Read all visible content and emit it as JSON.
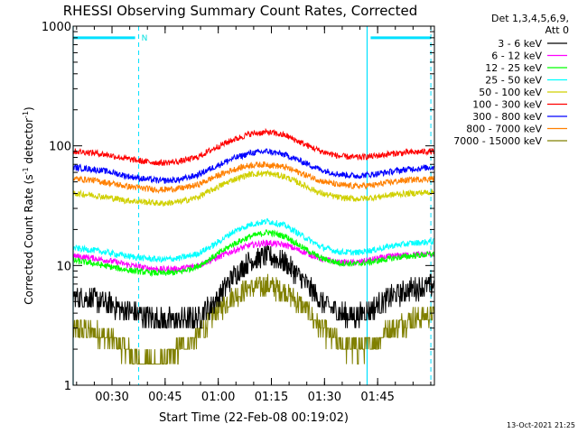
{
  "chart_data": {
    "type": "line",
    "title": "RHESSI Observing Summary Count Rates, Corrected",
    "xlabel": "Start Time (22-Feb-08 00:19:02)",
    "ylabel_main": "Corrected Count Rate (s",
    "ylabel_sup1": "-1",
    "ylabel_mid": " detector",
    "ylabel_sup2": "-1",
    "ylabel_end": ")",
    "x_unit": "minutes after 00:19:02",
    "xlim": [
      0,
      102
    ],
    "ylim": [
      1,
      1000
    ],
    "yscale": "log",
    "grid": false,
    "x_ticks": [
      {
        "value": 10.97,
        "label": "00:30"
      },
      {
        "value": 25.97,
        "label": "00:45"
      },
      {
        "value": 40.97,
        "label": "01:00"
      },
      {
        "value": 55.97,
        "label": "01:15"
      },
      {
        "value": 70.97,
        "label": "01:30"
      },
      {
        "value": 85.97,
        "label": "01:45"
      }
    ],
    "y_ticks": [
      {
        "value": 1,
        "label": "1"
      },
      {
        "value": 10,
        "label": "10"
      },
      {
        "value": 100,
        "label": "100"
      },
      {
        "value": 1000,
        "label": "1000"
      }
    ],
    "legend_header_1": "Det 1,3,4,5,6,9,",
    "legend_header_2": "Att 0",
    "legend_position": "right",
    "night_marker_label": "N",
    "markers": {
      "solid_vlines": [
        0,
        83
      ],
      "dashed_vlines": [
        18.5,
        101
      ],
      "bars": [
        [
          0,
          17.5
        ],
        [
          84,
          101
        ]
      ],
      "bar_level": 800
    },
    "timestamp": "13-Oct-2021 21:25",
    "series": [
      {
        "name": "3 - 6 keV",
        "color": "#000000",
        "x": [
          0,
          5,
          10,
          15,
          20,
          25,
          30,
          35,
          40,
          45,
          50,
          55,
          60,
          65,
          70,
          75,
          80,
          85,
          90,
          95,
          101
        ],
        "values": [
          5.5,
          5.3,
          4.8,
          4.2,
          3.8,
          3.5,
          3.5,
          3.6,
          5,
          8,
          11,
          12,
          10.5,
          7.5,
          5,
          4,
          3.8,
          4.5,
          5.5,
          6.3,
          6.8
        ]
      },
      {
        "name": "6 - 12 keV",
        "color": "#ff00ff",
        "x": [
          0,
          5,
          10,
          15,
          20,
          25,
          30,
          35,
          40,
          45,
          50,
          55,
          60,
          65,
          70,
          75,
          80,
          85,
          90,
          95,
          101
        ],
        "values": [
          12,
          11.6,
          11,
          10.2,
          9.6,
          9.3,
          9.4,
          10,
          11.4,
          13.2,
          14.8,
          15.5,
          14.8,
          13,
          11.4,
          10.6,
          10.6,
          11.3,
          12,
          12.3,
          12.5
        ]
      },
      {
        "name": "12 - 25 keV",
        "color": "#00ff00",
        "x": [
          0,
          5,
          10,
          15,
          20,
          25,
          30,
          35,
          40,
          45,
          50,
          55,
          60,
          65,
          70,
          75,
          80,
          85,
          90,
          95,
          101
        ],
        "values": [
          11,
          10.5,
          9.8,
          9.2,
          8.8,
          8.6,
          8.8,
          9.8,
          12,
          15,
          17.5,
          19,
          17.5,
          14,
          11.5,
          10.5,
          10.3,
          10.8,
          11.5,
          12,
          12.4
        ]
      },
      {
        "name": "25 - 50 keV",
        "color": "#00ffff",
        "x": [
          0,
          5,
          10,
          15,
          20,
          25,
          30,
          35,
          40,
          45,
          50,
          55,
          60,
          65,
          70,
          75,
          80,
          85,
          90,
          95,
          101
        ],
        "values": [
          14,
          13.5,
          12.8,
          12,
          11.5,
          11.2,
          11.5,
          12.5,
          15,
          19,
          22,
          23.5,
          21.5,
          17.5,
          14.3,
          13,
          12.8,
          13.5,
          14.6,
          15.3,
          15.8
        ]
      },
      {
        "name": "50 - 100 keV",
        "color": "#d0d000",
        "x": [
          0,
          5,
          10,
          15,
          20,
          25,
          30,
          35,
          40,
          45,
          50,
          55,
          60,
          65,
          70,
          75,
          80,
          85,
          90,
          95,
          101
        ],
        "values": [
          40,
          39,
          37,
          35,
          34,
          33,
          34,
          37,
          44,
          52,
          58,
          59,
          55,
          47,
          40,
          37,
          36,
          37,
          39,
          40,
          41
        ]
      },
      {
        "name": "100 - 300 keV",
        "color": "#ff0000",
        "x": [
          0,
          5,
          10,
          15,
          20,
          25,
          30,
          35,
          40,
          45,
          50,
          55,
          60,
          65,
          70,
          75,
          80,
          85,
          90,
          95,
          101
        ],
        "values": [
          90,
          88,
          84,
          78,
          74,
          72,
          74,
          80,
          96,
          112,
          126,
          130,
          122,
          104,
          90,
          82,
          80,
          82,
          86,
          88,
          90
        ]
      },
      {
        "name": "300 - 800 keV",
        "color": "#0000ff",
        "x": [
          0,
          5,
          10,
          15,
          20,
          25,
          30,
          35,
          40,
          45,
          50,
          55,
          60,
          65,
          70,
          75,
          80,
          85,
          90,
          95,
          101
        ],
        "values": [
          66,
          64,
          61,
          56,
          53,
          51,
          52,
          57,
          67,
          78,
          87,
          90,
          84,
          73,
          63,
          58,
          56,
          58,
          61,
          64,
          66
        ]
      },
      {
        "name": "800 - 7000 keV",
        "color": "#ff8000",
        "x": [
          0,
          5,
          10,
          15,
          20,
          25,
          30,
          35,
          40,
          45,
          50,
          55,
          60,
          65,
          70,
          75,
          80,
          85,
          90,
          95,
          101
        ],
        "values": [
          53,
          52,
          49,
          46,
          44,
          43,
          44,
          47,
          55,
          63,
          69,
          70,
          66,
          58,
          51,
          47,
          46,
          47,
          50,
          52,
          53
        ]
      },
      {
        "name": "7000 - 15000 keV",
        "color": "#808000",
        "x": [
          0,
          5,
          10,
          15,
          20,
          25,
          30,
          35,
          40,
          45,
          50,
          55,
          60,
          65,
          70,
          75,
          80,
          85,
          90,
          95,
          101
        ],
        "values": [
          3,
          2.8,
          2.5,
          2,
          1.5,
          1.6,
          2,
          2.5,
          4,
          5.5,
          6.5,
          6.8,
          6,
          4.5,
          3,
          2.2,
          2,
          2.3,
          3,
          3.5,
          3.8
        ]
      }
    ]
  }
}
